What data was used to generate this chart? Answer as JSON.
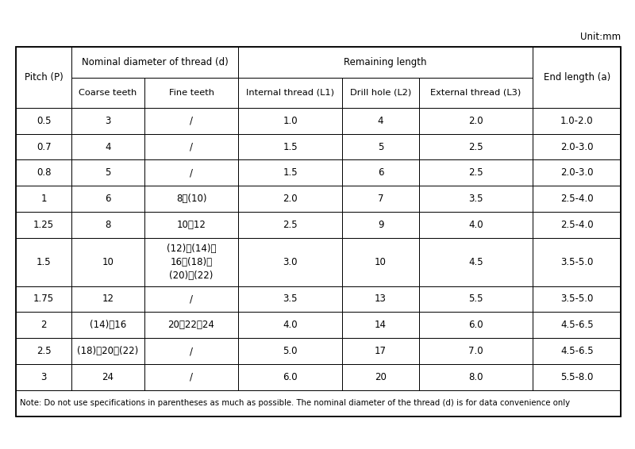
{
  "unit_label": "Unit:mm",
  "rows": [
    [
      "0.5",
      "3",
      "/",
      "1.0",
      "4",
      "2.0",
      "1.0-2.0"
    ],
    [
      "0.7",
      "4",
      "/",
      "1.5",
      "5",
      "2.5",
      "2.0-3.0"
    ],
    [
      "0.8",
      "5",
      "/",
      "1.5",
      "6",
      "2.5",
      "2.0-3.0"
    ],
    [
      "1",
      "6",
      "8、(10)",
      "2.0",
      "7",
      "3.5",
      "2.5-4.0"
    ],
    [
      "1.25",
      "8",
      "10、12",
      "2.5",
      "9",
      "4.0",
      "2.5-4.0"
    ],
    [
      "1.5",
      "10",
      "(12)、(14)、\n16、(18)、\n(20)、(22)",
      "3.0",
      "10",
      "4.5",
      "3.5-5.0"
    ],
    [
      "1.75",
      "12",
      "/",
      "3.5",
      "13",
      "5.5",
      "3.5-5.0"
    ],
    [
      "2",
      "(14)、16",
      "20、22、24",
      "4.0",
      "14",
      "6.0",
      "4.5-6.5"
    ],
    [
      "2.5",
      "(18)、20、(22)",
      "/",
      "5.0",
      "17",
      "7.0",
      "4.5-6.5"
    ],
    [
      "3",
      "24",
      "/",
      "6.0",
      "20",
      "8.0",
      "5.5-8.0"
    ]
  ],
  "note": "Note: Do not use specifications in parentheses as much as possible. The nominal diameter of the thread (d) is for data convenience only",
  "bg_color": "#ffffff",
  "border_color": "#000000",
  "text_color": "#000000",
  "figsize": [
    8.0,
    5.66
  ]
}
